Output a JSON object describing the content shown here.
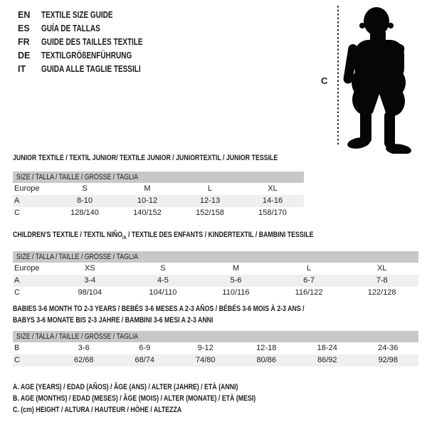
{
  "page": {
    "background": "#ffffff",
    "text_color": "#1d1d1b",
    "header_bar_color": "#c8c8c8",
    "alt_row_color": "#efefef"
  },
  "languages": [
    {
      "code": "EN",
      "title": "TEXTILE SIZE GUIDE"
    },
    {
      "code": "ES",
      "title": "GUÍA DE TALLAS"
    },
    {
      "code": "FR",
      "title": "GUIDE DES TAILLES TEXTILE"
    },
    {
      "code": "DE",
      "title": "TEXTILGRÖßENFÜHRUNG"
    },
    {
      "code": "IT",
      "title": "GUIDA ALLE TAGLIE TESSILI"
    }
  ],
  "figure": {
    "height_label": "C",
    "icon": "baby-silhouette"
  },
  "tables": [
    {
      "title_lines": [
        [
          {
            "text": "JUNIOR TEXTILE / TEXTIL JUNIOR/ TEXTILE JUNIOR / JUNIORTEXTIL / JUNIOR TESSILE"
          }
        ]
      ],
      "size_header": "SIZE / TALLA / TAILLE / GRÖSSE / TAGLIA",
      "rows": [
        {
          "label": "Europe",
          "values": [
            "S",
            "M",
            "L",
            "XL"
          ]
        },
        {
          "label": "A",
          "values": [
            "8-10",
            "10-12",
            "12-13",
            "14-16"
          ]
        },
        {
          "label": "C",
          "values": [
            "128/140",
            "140/152",
            "152/158",
            "158/170"
          ]
        }
      ]
    },
    {
      "title_lines": [
        [
          {
            "text": "CHILDREN'S TEXTILE / TEXTIL NIÑO"
          },
          {
            "text": "/A",
            "sub": true
          },
          {
            "text": " / TEXTILE DES ENFANTS / KINDERTEXTIL / BAMBINI TESSILE"
          }
        ]
      ],
      "size_header": "SIZE / TALLA / TAILLE / GRÖSSE / TAGLIA",
      "rows": [
        {
          "label": "Europe",
          "values": [
            "XS",
            "S",
            "M",
            "L",
            "XL"
          ]
        },
        {
          "label": "A",
          "values": [
            "3-4",
            "4-5",
            "5-6",
            "6-7",
            "7-8"
          ]
        },
        {
          "label": "C",
          "values": [
            "98/104",
            "104/110",
            "110/116",
            "116/122",
            "122/128"
          ]
        }
      ]
    },
    {
      "title_lines": [
        [
          {
            "text": "BABIES 3-6 MONTH TO 2-3 YEARS / BEBÉS 3-6 MESES A 2-3 AÑOS / BÉBÉS 3-6 MOIS À 2-3 ANS /"
          }
        ],
        [
          {
            "text": "BABYS 3-6 MONATE BIS 2-3 JAHRE / BAMBINI 3-6 MESI A 2-3 ANNI"
          }
        ]
      ],
      "size_header": "SIZE / TALLA / TAILLE / GRÖSSE / TAGLIA",
      "rows": [
        {
          "label": "B",
          "values": [
            "3-6",
            "6-9",
            "9-12",
            "12-18",
            "18-24",
            "24-36"
          ]
        },
        {
          "label": "C",
          "values": [
            "62/68",
            "68/74",
            "74/80",
            "80/86",
            "86/92",
            "92/98"
          ]
        }
      ]
    }
  ],
  "notes": [
    "A. AGE (YEARS) / EDAD (AÑOS) / ÂGE (ANS) / ALTER (JAHRE) / ETÀ (ANNI)",
    "B. AGE (MONTHS) / EDAD (MESES) / ÂGE (MOIS) / ALTER (MONATE) / ETÀ (MESI)",
    "C. (cm) HEIGHT / ALTURA / HAUTEUR / HÖHE / ALTEZZA"
  ]
}
